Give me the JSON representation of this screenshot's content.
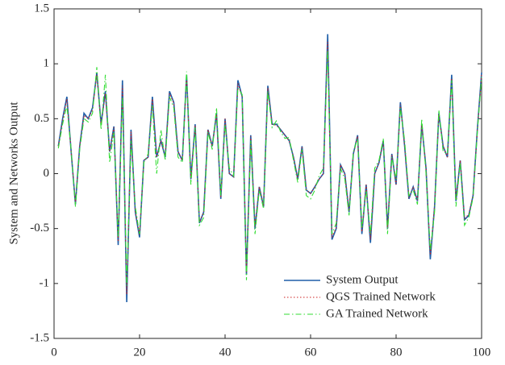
{
  "chart_data": {
    "type": "line",
    "ylabel": "System and Networks Output",
    "x": [
      1,
      2,
      3,
      4,
      5,
      6,
      7,
      8,
      9,
      10,
      11,
      12,
      13,
      14,
      15,
      16,
      17,
      18,
      19,
      20,
      21,
      22,
      23,
      24,
      25,
      26,
      27,
      28,
      29,
      30,
      31,
      32,
      33,
      34,
      35,
      36,
      37,
      38,
      39,
      40,
      41,
      42,
      43,
      44,
      45,
      46,
      47,
      48,
      49,
      50,
      51,
      52,
      53,
      54,
      55,
      56,
      57,
      58,
      59,
      60,
      61,
      62,
      63,
      64,
      65,
      66,
      67,
      68,
      69,
      70,
      71,
      72,
      73,
      74,
      75,
      76,
      77,
      78,
      79,
      80,
      81,
      82,
      83,
      84,
      85,
      86,
      87,
      88,
      89,
      90,
      91,
      92,
      93,
      94,
      95,
      96,
      97,
      98,
      99,
      100
    ],
    "series": [
      {
        "name": "System Output",
        "color": "#1f5fa8",
        "dash": "",
        "values": [
          0.25,
          0.5,
          0.7,
          0.2,
          -0.28,
          0.25,
          0.55,
          0.5,
          0.6,
          0.92,
          0.45,
          0.75,
          0.2,
          0.43,
          -0.65,
          0.85,
          -1.17,
          0.4,
          -0.35,
          -0.58,
          0.12,
          0.15,
          0.7,
          0.15,
          0.3,
          0.15,
          0.75,
          0.65,
          0.2,
          0.12,
          0.9,
          -0.05,
          0.45,
          -0.45,
          -0.35,
          0.4,
          0.25,
          0.55,
          -0.23,
          0.5,
          0.0,
          -0.03,
          0.85,
          0.7,
          -0.92,
          0.35,
          -0.5,
          -0.12,
          -0.3,
          0.8,
          0.45,
          0.45,
          0.4,
          0.35,
          0.3,
          0.15,
          -0.05,
          0.25,
          -0.15,
          -0.18,
          -0.12,
          -0.05,
          0.0,
          1.27,
          -0.6,
          -0.5,
          0.08,
          0.0,
          -0.35,
          0.18,
          0.35,
          -0.55,
          -0.1,
          -0.63,
          0.0,
          0.1,
          0.3,
          -0.5,
          0.18,
          -0.1,
          0.65,
          0.25,
          -0.23,
          -0.12,
          -0.25,
          0.45,
          0.05,
          -0.78,
          -0.3,
          0.55,
          0.25,
          0.15,
          0.9,
          -0.25,
          0.12,
          -0.42,
          -0.38,
          -0.2,
          0.4,
          0.92
        ]
      },
      {
        "name": "QGS Trained Network",
        "color": "#cc2222",
        "dash": "1.5,2.5",
        "values": [
          0.25,
          0.48,
          0.68,
          0.2,
          -0.27,
          0.25,
          0.53,
          0.5,
          0.58,
          0.9,
          0.45,
          0.73,
          0.2,
          0.42,
          -0.62,
          0.8,
          -1.1,
          0.38,
          -0.34,
          -0.56,
          0.12,
          0.15,
          0.68,
          0.15,
          0.3,
          0.16,
          0.73,
          0.64,
          0.2,
          0.12,
          0.88,
          -0.04,
          0.44,
          -0.44,
          -0.35,
          0.4,
          0.25,
          0.54,
          -0.22,
          0.5,
          0.0,
          -0.03,
          0.82,
          0.7,
          -0.9,
          0.34,
          -0.48,
          -0.12,
          -0.29,
          0.78,
          0.45,
          0.44,
          0.4,
          0.35,
          0.3,
          0.15,
          -0.05,
          0.24,
          -0.15,
          -0.18,
          -0.12,
          -0.05,
          0.0,
          1.2,
          -0.58,
          -0.49,
          0.08,
          0.0,
          -0.34,
          0.18,
          0.34,
          -0.53,
          -0.1,
          -0.6,
          0.0,
          0.1,
          0.3,
          -0.49,
          0.17,
          -0.1,
          0.63,
          0.25,
          -0.22,
          -0.12,
          -0.24,
          0.44,
          0.05,
          -0.74,
          -0.29,
          0.54,
          0.25,
          0.15,
          0.87,
          -0.24,
          0.12,
          -0.41,
          -0.37,
          -0.2,
          0.39,
          0.9
        ]
      },
      {
        "name": "GA Trained Network",
        "color": "#33dd33",
        "dash": "7,3,1.5,3",
        "values": [
          0.23,
          0.45,
          0.62,
          0.22,
          -0.3,
          0.22,
          0.5,
          0.47,
          0.55,
          0.97,
          0.4,
          0.9,
          0.1,
          0.38,
          -0.58,
          0.7,
          -1.02,
          0.3,
          -0.3,
          -0.55,
          0.1,
          0.18,
          0.62,
          0.0,
          0.4,
          0.12,
          0.7,
          0.6,
          0.15,
          0.1,
          0.93,
          -0.1,
          0.42,
          -0.47,
          -0.4,
          0.38,
          0.22,
          0.6,
          -0.2,
          0.45,
          0.05,
          -0.02,
          0.78,
          0.72,
          -0.97,
          0.3,
          -0.55,
          -0.15,
          -0.32,
          0.75,
          0.42,
          0.48,
          0.38,
          0.32,
          0.33,
          0.12,
          -0.08,
          0.22,
          -0.2,
          -0.23,
          -0.15,
          -0.02,
          0.05,
          1.12,
          -0.55,
          -0.45,
          0.05,
          -0.05,
          -0.38,
          0.2,
          0.32,
          -0.5,
          -0.15,
          -0.55,
          0.05,
          0.12,
          0.32,
          -0.55,
          0.15,
          -0.05,
          0.6,
          0.3,
          -0.2,
          -0.15,
          -0.28,
          0.5,
          0.0,
          -0.7,
          -0.35,
          0.58,
          0.2,
          0.18,
          0.85,
          -0.3,
          0.1,
          -0.47,
          -0.4,
          -0.22,
          0.38,
          0.88
        ]
      }
    ],
    "xlim": [
      0,
      100
    ],
    "xticks": [
      0,
      20,
      40,
      60,
      80,
      100
    ],
    "ylim": [
      -1.5,
      1.5
    ],
    "yticks": [
      -1.5,
      -1,
      -0.5,
      0,
      0.5,
      1,
      1.5
    ],
    "legend": "lower right"
  }
}
